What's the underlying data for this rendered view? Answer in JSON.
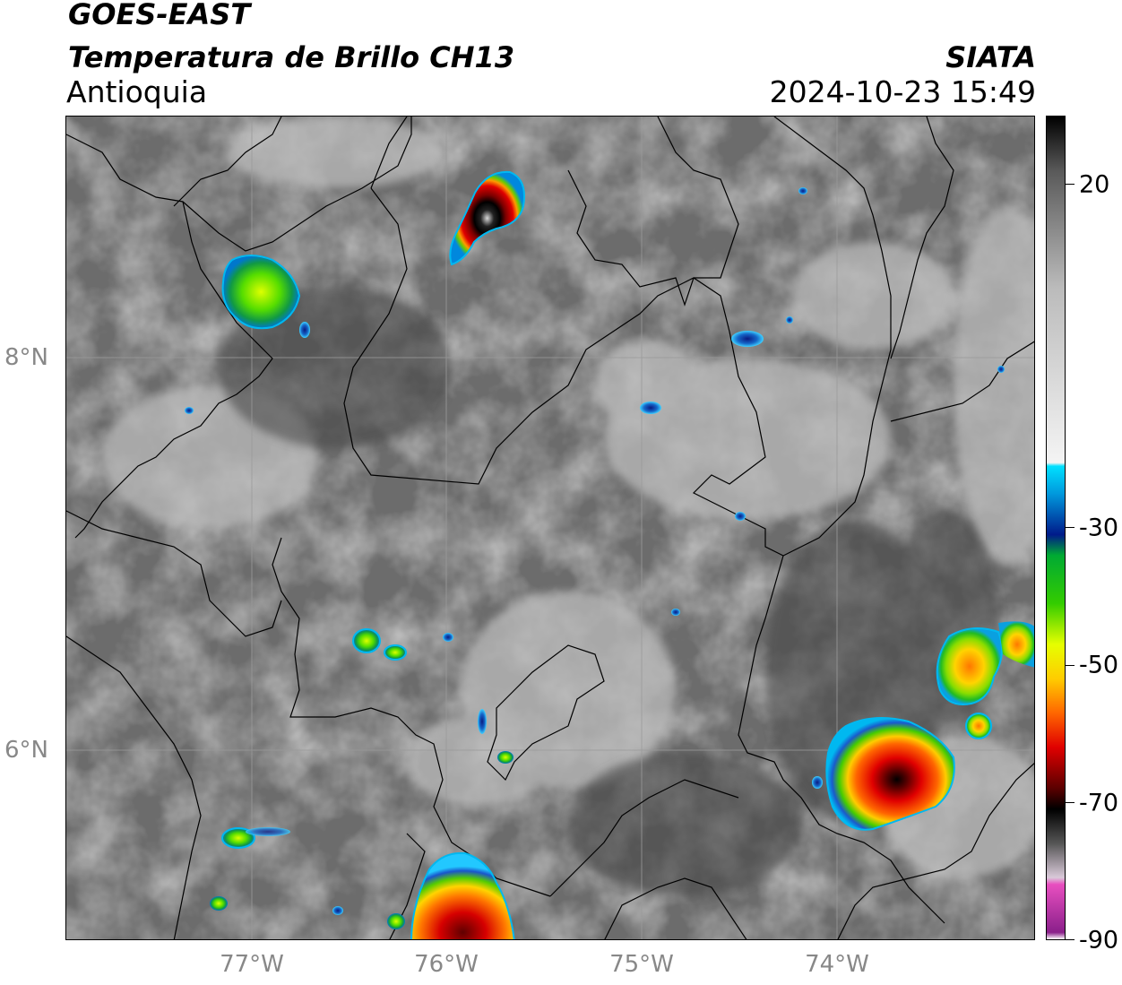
{
  "header": {
    "satellite": "GOES-EAST",
    "product": "Temperatura de Brillo CH13",
    "region": "Antioquia",
    "organization": "SIATA",
    "timestamp": "2024-10-23 15:49"
  },
  "map": {
    "longitude_ticks": [
      {
        "lon": -77,
        "label": "77°W"
      },
      {
        "lon": -76,
        "label": "76°W"
      },
      {
        "lon": -75,
        "label": "75°W"
      },
      {
        "lon": -74,
        "label": "74°W"
      }
    ],
    "latitude_ticks": [
      {
        "lat": 8,
        "label": "8°N"
      },
      {
        "lat": 6,
        "label": "6°N"
      }
    ],
    "background_color": "#6c6c6c",
    "gridline_color": "#9a9a9a",
    "boundary_color": "#000000",
    "cold_cloud_cells": [
      {
        "name": "cell-north-center",
        "peak_temp_c": -85
      },
      {
        "name": "cell-northwest",
        "peak_temp_c": -45
      },
      {
        "name": "cell-southeast",
        "peak_temp_c": -75
      },
      {
        "name": "cell-east",
        "peak_temp_c": -62
      },
      {
        "name": "cell-south",
        "peak_temp_c": -65
      },
      {
        "name": "cell-west-center",
        "peak_temp_c": -40
      },
      {
        "name": "cell-southwest",
        "peak_temp_c": -38
      }
    ]
  },
  "colorbar": {
    "min": -90,
    "max": 30,
    "ticks": [
      {
        "value": 20,
        "label": "20"
      },
      {
        "value": -30,
        "label": "-30"
      },
      {
        "value": -50,
        "label": "-50"
      },
      {
        "value": -70,
        "label": "-70"
      },
      {
        "value": -90,
        "label": "-90"
      }
    ],
    "stops": [
      {
        "value": -90,
        "color": "#ffffff"
      },
      {
        "value": -89,
        "color": "#8a1f8a"
      },
      {
        "value": -82,
        "color": "#e84fc0"
      },
      {
        "value": -81,
        "color": "#d9c9d9"
      },
      {
        "value": -76,
        "color": "#555555"
      },
      {
        "value": -71,
        "color": "#000000"
      },
      {
        "value": -68,
        "color": "#5a0000"
      },
      {
        "value": -62,
        "color": "#e00000"
      },
      {
        "value": -57,
        "color": "#ff6600"
      },
      {
        "value": -52,
        "color": "#ffcc00"
      },
      {
        "value": -47,
        "color": "#e6ff00"
      },
      {
        "value": -41,
        "color": "#33cc00"
      },
      {
        "value": -34,
        "color": "#00aa33"
      },
      {
        "value": -31,
        "color": "#001a8a"
      },
      {
        "value": -25,
        "color": "#0099dd"
      },
      {
        "value": -21,
        "color": "#00e0ff"
      },
      {
        "value": -20.5,
        "color": "#f4f4f4"
      },
      {
        "value": 5,
        "color": "#bbbbbb"
      },
      {
        "value": 22,
        "color": "#5a5a5a"
      },
      {
        "value": 30,
        "color": "#000000"
      }
    ]
  }
}
